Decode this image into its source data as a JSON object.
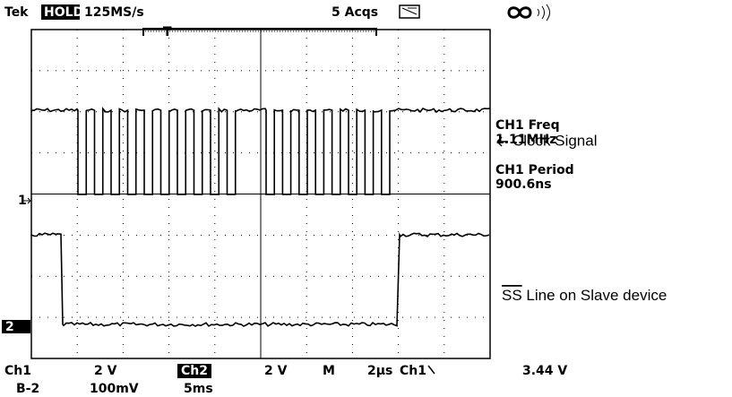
{
  "header": {
    "brand": "Tek",
    "mode": "HOLD",
    "sample_rate": "125MS/s",
    "acquisitions": "5 Acqs",
    "trigger_label": "T"
  },
  "markers": {
    "ch1": "1",
    "ch2": "2"
  },
  "measurements": [
    {
      "label": "CH1 Freq",
      "value": "1.11MHz"
    },
    {
      "label": "CH1 Period",
      "value": "900.6ns"
    }
  ],
  "annotations": {
    "clock": "Clock Signal",
    "ss_overline": "SS",
    "ss_rest": " Line on Slave device"
  },
  "footer": {
    "ch1": "Ch1",
    "ch1_scale": "2 V",
    "ch2": "Ch2",
    "ch2_scale": "2 V",
    "time_mode": "M",
    "time_scale": "2µs",
    "trigger_source": "Ch1",
    "trigger_level": "3.44 V",
    "math": "B-2",
    "math_scale": "100mV",
    "math_time": "5ms"
  }
}
